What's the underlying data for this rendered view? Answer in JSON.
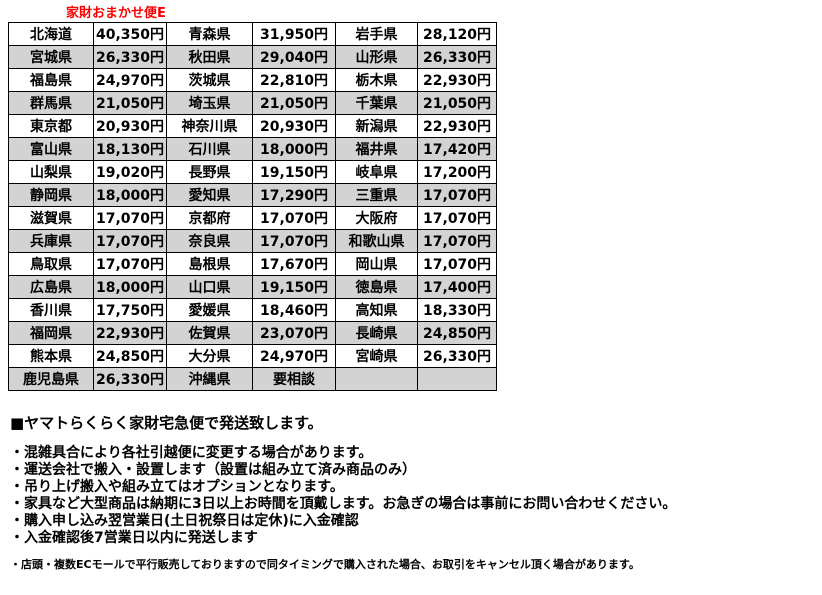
{
  "header": {
    "title": "家財おまかせ便E"
  },
  "colors": {
    "title_text": "#ff0000",
    "shaded_row": "#d3d3d3",
    "border": "#000000",
    "background": "#ffffff"
  },
  "table": {
    "rows": [
      {
        "shaded": false,
        "cells": [
          "北海道",
          "40,350円",
          "青森県",
          "31,950円",
          "岩手県",
          "28,120円"
        ]
      },
      {
        "shaded": true,
        "cells": [
          "宮城県",
          "26,330円",
          "秋田県",
          "29,040円",
          "山形県",
          "26,330円"
        ]
      },
      {
        "shaded": false,
        "cells": [
          "福島県",
          "24,970円",
          "茨城県",
          "22,810円",
          "栃木県",
          "22,930円"
        ]
      },
      {
        "shaded": true,
        "cells": [
          "群馬県",
          "21,050円",
          "埼玉県",
          "21,050円",
          "千葉県",
          "21,050円"
        ]
      },
      {
        "shaded": false,
        "cells": [
          "東京都",
          "20,930円",
          "神奈川県",
          "20,930円",
          "新潟県",
          "22,930円"
        ]
      },
      {
        "shaded": true,
        "cells": [
          "富山県",
          "18,130円",
          "石川県",
          "18,000円",
          "福井県",
          "17,420円"
        ]
      },
      {
        "shaded": false,
        "cells": [
          "山梨県",
          "19,020円",
          "長野県",
          "19,150円",
          "岐阜県",
          "17,200円"
        ]
      },
      {
        "shaded": true,
        "cells": [
          "静岡県",
          "18,000円",
          "愛知県",
          "17,290円",
          "三重県",
          "17,070円"
        ]
      },
      {
        "shaded": false,
        "cells": [
          "滋賀県",
          "17,070円",
          "京都府",
          "17,070円",
          "大阪府",
          "17,070円"
        ]
      },
      {
        "shaded": true,
        "cells": [
          "兵庫県",
          "17,070円",
          "奈良県",
          "17,070円",
          "和歌山県",
          "17,070円"
        ]
      },
      {
        "shaded": false,
        "cells": [
          "鳥取県",
          "17,070円",
          "島根県",
          "17,670円",
          "岡山県",
          "17,070円"
        ]
      },
      {
        "shaded": true,
        "cells": [
          "広島県",
          "18,000円",
          "山口県",
          "19,150円",
          "徳島県",
          "17,400円"
        ]
      },
      {
        "shaded": false,
        "cells": [
          "香川県",
          "17,750円",
          "愛媛県",
          "18,460円",
          "高知県",
          "18,330円"
        ]
      },
      {
        "shaded": true,
        "cells": [
          "福岡県",
          "22,930円",
          "佐賀県",
          "23,070円",
          "長崎県",
          "24,850円"
        ]
      },
      {
        "shaded": false,
        "cells": [
          "熊本県",
          "24,850円",
          "大分県",
          "24,970円",
          "宮崎県",
          "26,330円"
        ]
      },
      {
        "shaded": true,
        "cells": [
          "鹿児島県",
          "26,330円",
          "沖縄県",
          "要相談",
          "",
          ""
        ]
      }
    ]
  },
  "notes": {
    "heading": "■ヤマトらくらく家財宅急便で発送致します。",
    "bullets": [
      "・混雑具合により各社引越便に変更する場合があります。",
      "・運送会社で搬入・設置します（設置は組み立て済み商品のみ）",
      "・吊り上げ搬入や組み立てはオプションとなります。",
      "・家具など大型商品は納期に3日以上お時間を頂戴します。お急ぎの場合は事前にお問い合わせください。",
      "・購入申し込み翌営業日(土日祝祭日は定休)に入金確認",
      "・入金確認後7営業日以内に発送します"
    ],
    "footnote": "・店頭・複数ECモールで平行販売しておりますので同タイミングで購入された場合、お取引をキャンセル頂く場合があります。"
  }
}
